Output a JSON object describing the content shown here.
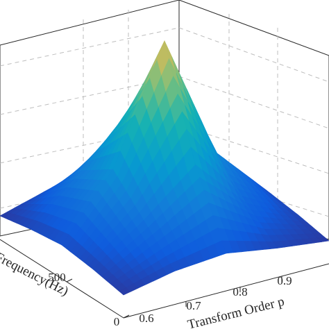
{
  "chart_data": {
    "type": "surface3d",
    "colormap": "parula",
    "grid": true,
    "title": "",
    "xlabel": "Transform Order p",
    "ylabel": "Frequency(Hz)",
    "x_ticks": [
      "0.6",
      "0.7",
      "0.8",
      "0.9"
    ],
    "y_ticks": [
      "0",
      "500"
    ],
    "xlim": [
      0.6,
      1.0
    ],
    "ylim": [
      0,
      1000
    ],
    "surface": {
      "x": [
        0.6,
        0.7,
        0.8,
        0.9,
        1.0
      ],
      "y": [
        0,
        250,
        500,
        750,
        1000
      ],
      "z": [
        [
          0.05,
          0.1,
          0.12,
          0.08,
          0.05
        ],
        [
          0.08,
          0.25,
          0.45,
          0.2,
          0.08
        ],
        [
          0.1,
          0.4,
          0.95,
          0.35,
          0.1
        ],
        [
          0.08,
          0.3,
          0.55,
          0.25,
          0.07
        ],
        [
          0.05,
          0.12,
          0.18,
          0.1,
          0.05
        ]
      ],
      "z_range": [
        0,
        1
      ]
    }
  }
}
